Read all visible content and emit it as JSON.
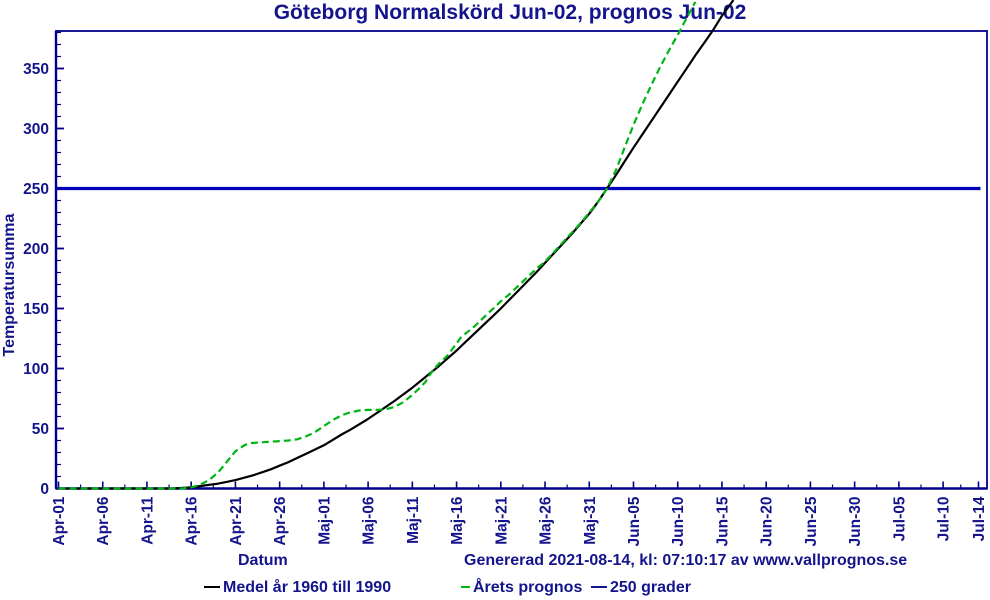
{
  "title": "Göteborg Normalskörd Jun-02, prognos Jun-02",
  "colors": {
    "text_navy": "#14148c",
    "axis_navy": "#00008b",
    "threshold_blue": "#0000bb",
    "series_black": "#000000",
    "series_green": "#00b414",
    "background": "#ffffff"
  },
  "axes": {
    "x_title": "Datum",
    "y_title": "Temperatursumma"
  },
  "footer": {
    "generated_text": "Genererad 2021-08-14, kl: 07:10:17 av www.vallprognos.se"
  },
  "legend": {
    "items": [
      {
        "label": "Medel år 1960 till 1990",
        "color": "#000000",
        "style": "solid"
      },
      {
        "label": "Årets prognos",
        "color": "#00b414",
        "style": "dashed"
      },
      {
        "label": "250 grader",
        "color": "#0000bb",
        "style": "solid"
      }
    ]
  },
  "chart_data": {
    "type": "line",
    "title": "Göteborg Normalskörd Jun-02, prognos Jun-02",
    "xlabel": "Datum",
    "ylabel": "Temperatursumma",
    "x_unit": "days since Apr-01",
    "ylim": [
      0,
      381
    ],
    "y_major_step": 50,
    "y_minor_step": 10,
    "y_major_max_label": 350,
    "x_ticks": [
      {
        "label": "Apr-01",
        "day": 0
      },
      {
        "label": "Apr-06",
        "day": 5
      },
      {
        "label": "Apr-11",
        "day": 10
      },
      {
        "label": "Apr-16",
        "day": 15
      },
      {
        "label": "Apr-21",
        "day": 20
      },
      {
        "label": "Apr-26",
        "day": 25
      },
      {
        "label": "Maj-01",
        "day": 30
      },
      {
        "label": "Maj-06",
        "day": 35
      },
      {
        "label": "Maj-11",
        "day": 40
      },
      {
        "label": "Maj-16",
        "day": 45
      },
      {
        "label": "Maj-21",
        "day": 50
      },
      {
        "label": "Maj-26",
        "day": 55
      },
      {
        "label": "Maj-31",
        "day": 60
      },
      {
        "label": "Jun-05",
        "day": 65
      },
      {
        "label": "Jun-10",
        "day": 70
      },
      {
        "label": "Jun-15",
        "day": 75
      },
      {
        "label": "Jun-20",
        "day": 80
      },
      {
        "label": "Jun-25",
        "day": 85
      },
      {
        "label": "Jun-30",
        "day": 90
      },
      {
        "label": "Jul-05",
        "day": 95
      },
      {
        "label": "Jul-10",
        "day": 100
      },
      {
        "label": "Jul-14",
        "day": 104
      }
    ],
    "threshold": {
      "value": 250,
      "label": "250 grader"
    },
    "series": [
      {
        "name": "Medel år 1960 till 1990",
        "style": "solid",
        "color": "#000000",
        "points": [
          [
            0,
            0
          ],
          [
            4,
            0
          ],
          [
            8,
            0
          ],
          [
            11,
            0
          ],
          [
            13,
            0
          ],
          [
            15,
            1
          ],
          [
            16,
            2
          ],
          [
            17,
            3
          ],
          [
            18,
            4
          ],
          [
            19,
            5.5
          ],
          [
            20,
            7
          ],
          [
            21,
            9
          ],
          [
            22,
            11
          ],
          [
            23,
            13.5
          ],
          [
            24,
            16
          ],
          [
            25,
            19
          ],
          [
            26,
            22
          ],
          [
            27,
            25.5
          ],
          [
            28,
            29
          ],
          [
            29,
            32.5
          ],
          [
            30,
            36
          ],
          [
            31,
            40.5
          ],
          [
            32,
            45
          ],
          [
            33,
            49
          ],
          [
            34,
            53.5
          ],
          [
            35,
            58
          ],
          [
            36,
            63
          ],
          [
            37,
            68
          ],
          [
            38,
            73
          ],
          [
            39,
            78.5
          ],
          [
            40,
            84
          ],
          [
            41,
            90
          ],
          [
            42,
            96
          ],
          [
            43,
            102
          ],
          [
            44,
            108.5
          ],
          [
            45,
            115
          ],
          [
            46,
            122
          ],
          [
            47,
            129
          ],
          [
            48,
            136
          ],
          [
            49,
            143
          ],
          [
            50,
            150
          ],
          [
            51,
            157.5
          ],
          [
            52,
            165
          ],
          [
            53,
            172.5
          ],
          [
            54,
            180
          ],
          [
            55,
            188
          ],
          [
            56,
            196
          ],
          [
            57,
            204
          ],
          [
            58,
            212
          ],
          [
            59,
            220.5
          ],
          [
            60,
            229
          ],
          [
            61,
            239
          ],
          [
            62,
            250
          ],
          [
            63,
            261
          ],
          [
            64,
            272.5
          ],
          [
            65,
            284
          ],
          [
            66,
            295
          ],
          [
            67,
            306
          ],
          [
            68,
            317
          ],
          [
            69,
            328
          ],
          [
            70,
            339
          ],
          [
            71,
            350
          ],
          [
            72,
            361
          ],
          [
            73,
            371.5
          ],
          [
            74,
            382
          ],
          [
            75,
            394
          ],
          [
            76.3,
            407
          ]
        ]
      },
      {
        "name": "Årets prognos",
        "style": "dashed",
        "color": "#00b414",
        "points": [
          [
            0,
            0
          ],
          [
            3,
            0
          ],
          [
            6,
            0
          ],
          [
            9,
            0
          ],
          [
            12,
            0
          ],
          [
            14,
            0
          ],
          [
            15,
            1
          ],
          [
            16,
            3
          ],
          [
            17,
            7
          ],
          [
            18,
            13
          ],
          [
            19,
            22
          ],
          [
            20,
            31
          ],
          [
            21,
            36
          ],
          [
            21.5,
            37.5
          ],
          [
            22,
            38
          ],
          [
            23,
            38.5
          ],
          [
            24,
            39
          ],
          [
            25,
            39.5
          ],
          [
            26,
            40
          ],
          [
            27,
            41
          ],
          [
            28,
            43.5
          ],
          [
            29,
            47
          ],
          [
            30,
            52
          ],
          [
            31,
            57
          ],
          [
            32,
            61
          ],
          [
            33,
            63.5
          ],
          [
            34,
            65
          ],
          [
            35,
            65.5
          ],
          [
            36,
            65.5
          ],
          [
            37,
            66
          ],
          [
            38,
            68
          ],
          [
            39,
            72
          ],
          [
            40,
            78
          ],
          [
            41,
            85
          ],
          [
            41.5,
            89
          ],
          [
            42,
            95
          ],
          [
            42.5,
            100
          ],
          [
            43,
            104
          ],
          [
            44,
            111
          ],
          [
            45,
            121
          ],
          [
            45.5,
            126
          ],
          [
            46,
            129
          ],
          [
            47,
            135
          ],
          [
            48,
            142
          ],
          [
            49,
            149
          ],
          [
            50,
            156
          ],
          [
            51,
            162
          ],
          [
            52,
            169
          ],
          [
            53,
            176
          ],
          [
            54,
            183
          ],
          [
            55,
            189
          ],
          [
            56,
            197
          ],
          [
            57,
            205
          ],
          [
            58,
            213
          ],
          [
            59,
            221
          ],
          [
            60,
            230
          ],
          [
            61,
            239
          ],
          [
            62,
            250
          ],
          [
            63,
            265
          ],
          [
            64,
            284
          ],
          [
            65,
            303
          ],
          [
            66,
            320
          ],
          [
            67,
            336
          ],
          [
            68,
            351
          ],
          [
            69,
            365
          ],
          [
            70,
            378
          ],
          [
            71,
            392
          ],
          [
            72,
            405.5
          ]
        ]
      }
    ]
  }
}
